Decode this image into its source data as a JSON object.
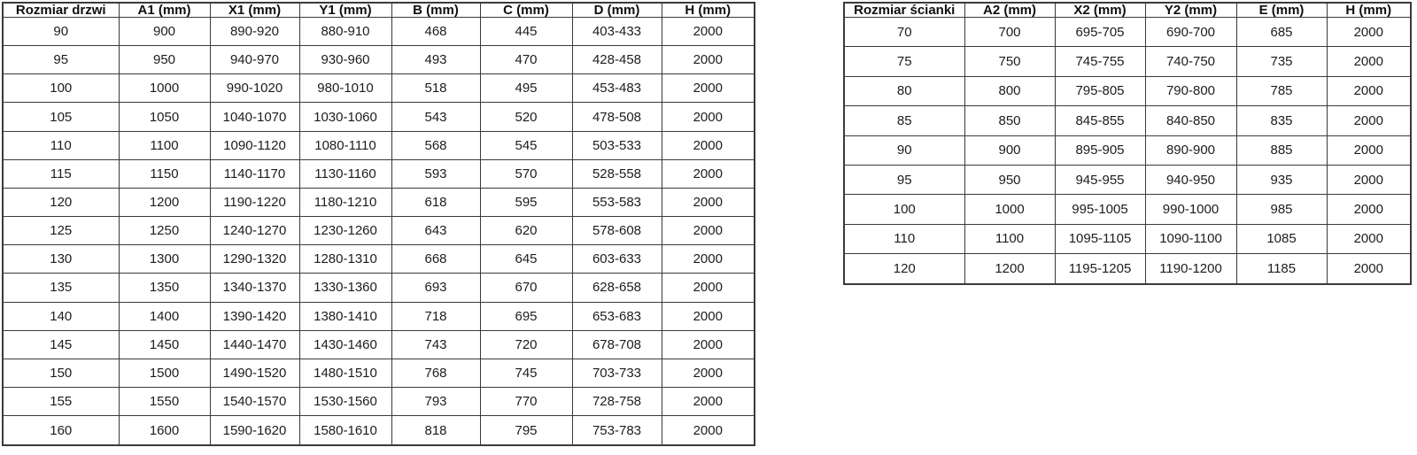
{
  "page": {
    "background_color": "#ffffff",
    "border_color": "#3a3a3a",
    "text_color": "#1c1c1c"
  },
  "door_table": {
    "headers": [
      "Rozmiar drzwi",
      "A1 (mm)",
      "X1 (mm)",
      "Y1 (mm)",
      "B (mm)",
      "C (mm)",
      "D (mm)",
      "H (mm)"
    ],
    "rows": [
      [
        "90",
        "900",
        "890-920",
        "880-910",
        "468",
        "445",
        "403-433",
        "2000"
      ],
      [
        "95",
        "950",
        "940-970",
        "930-960",
        "493",
        "470",
        "428-458",
        "2000"
      ],
      [
        "100",
        "1000",
        "990-1020",
        "980-1010",
        "518",
        "495",
        "453-483",
        "2000"
      ],
      [
        "105",
        "1050",
        "1040-1070",
        "1030-1060",
        "543",
        "520",
        "478-508",
        "2000"
      ],
      [
        "110",
        "1100",
        "1090-1120",
        "1080-1110",
        "568",
        "545",
        "503-533",
        "2000"
      ],
      [
        "115",
        "1150",
        "1140-1170",
        "1130-1160",
        "593",
        "570",
        "528-558",
        "2000"
      ],
      [
        "120",
        "1200",
        "1190-1220",
        "1180-1210",
        "618",
        "595",
        "553-583",
        "2000"
      ],
      [
        "125",
        "1250",
        "1240-1270",
        "1230-1260",
        "643",
        "620",
        "578-608",
        "2000"
      ],
      [
        "130",
        "1300",
        "1290-1320",
        "1280-1310",
        "668",
        "645",
        "603-633",
        "2000"
      ],
      [
        "135",
        "1350",
        "1340-1370",
        "1330-1360",
        "693",
        "670",
        "628-658",
        "2000"
      ],
      [
        "140",
        "1400",
        "1390-1420",
        "1380-1410",
        "718",
        "695",
        "653-683",
        "2000"
      ],
      [
        "145",
        "1450",
        "1440-1470",
        "1430-1460",
        "743",
        "720",
        "678-708",
        "2000"
      ],
      [
        "150",
        "1500",
        "1490-1520",
        "1480-1510",
        "768",
        "745",
        "703-733",
        "2000"
      ],
      [
        "155",
        "1550",
        "1540-1570",
        "1530-1560",
        "793",
        "770",
        "728-758",
        "2000"
      ],
      [
        "160",
        "1600",
        "1590-1620",
        "1580-1610",
        "818",
        "795",
        "753-783",
        "2000"
      ]
    ]
  },
  "wall_table": {
    "headers": [
      "Rozmiar ścianki",
      "A2 (mm)",
      "X2 (mm)",
      "Y2 (mm)",
      "E (mm)",
      "H (mm)"
    ],
    "rows": [
      [
        "70",
        "700",
        "695-705",
        "690-700",
        "685",
        "2000"
      ],
      [
        "75",
        "750",
        "745-755",
        "740-750",
        "735",
        "2000"
      ],
      [
        "80",
        "800",
        "795-805",
        "790-800",
        "785",
        "2000"
      ],
      [
        "85",
        "850",
        "845-855",
        "840-850",
        "835",
        "2000"
      ],
      [
        "90",
        "900",
        "895-905",
        "890-900",
        "885",
        "2000"
      ],
      [
        "95",
        "950",
        "945-955",
        "940-950",
        "935",
        "2000"
      ],
      [
        "100",
        "1000",
        "995-1005",
        "990-1000",
        "985",
        "2000"
      ],
      [
        "110",
        "1100",
        "1095-1105",
        "1090-1100",
        "1085",
        "2000"
      ],
      [
        "120",
        "1200",
        "1195-1205",
        "1190-1200",
        "1185",
        "2000"
      ]
    ]
  }
}
